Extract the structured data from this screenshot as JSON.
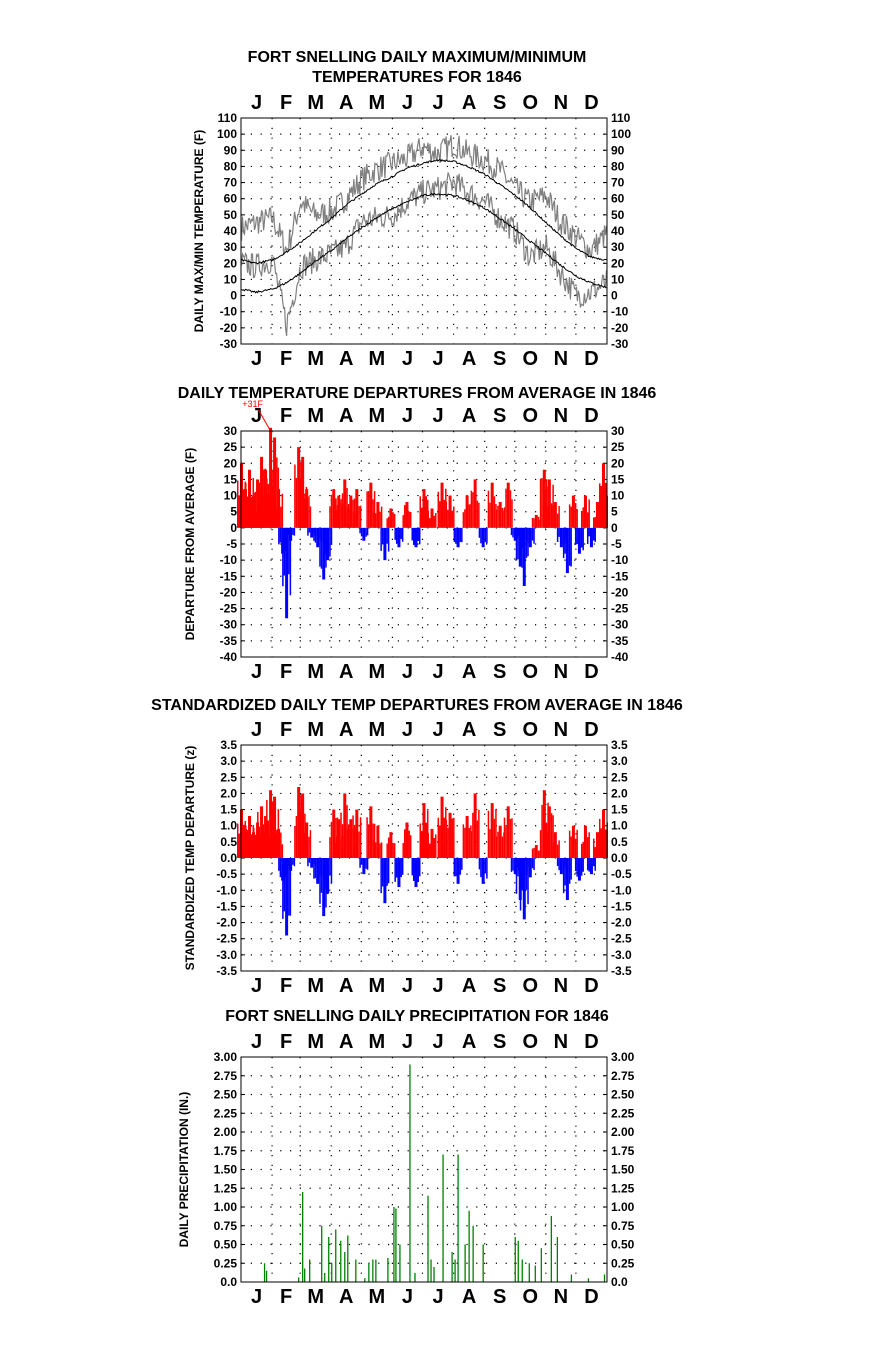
{
  "figure": {
    "months": [
      "J",
      "F",
      "M",
      "A",
      "M",
      "J",
      "J",
      "A",
      "S",
      "O",
      "N",
      "D"
    ]
  },
  "chart_data": [
    {
      "id": "maxmin",
      "type": "line",
      "title": [
        "FORT SNELLING DAILY MAXIMUM/MINIMUM",
        "TEMPERATURES FOR 1846"
      ],
      "ylabel": "DAILY MAX/MIN TEMPERATURE (F)",
      "ylim": [
        -30,
        110
      ],
      "yticks": [
        "110",
        "100",
        "90",
        "80",
        "70",
        "60",
        "50",
        "40",
        "30",
        "20",
        "10",
        "0",
        "-10",
        "-20",
        "-30"
      ],
      "grid": "dotted",
      "colors": {
        "observed": "#808080",
        "normal": "#000000"
      },
      "normal_max": [
        {
          "x": "Jan 1",
          "y": 22
        },
        {
          "x": "Jan 15",
          "y": 20
        },
        {
          "x": "Feb 1",
          "y": 22
        },
        {
          "x": "Feb 15",
          "y": 27
        },
        {
          "x": "Mar 1",
          "y": 33
        },
        {
          "x": "Mar 15",
          "y": 40
        },
        {
          "x": "Apr 1",
          "y": 48
        },
        {
          "x": "Apr 15",
          "y": 56
        },
        {
          "x": "May 1",
          "y": 63
        },
        {
          "x": "May 15",
          "y": 69
        },
        {
          "x": "Jun 1",
          "y": 74
        },
        {
          "x": "Jun 15",
          "y": 79
        },
        {
          "x": "Jul 1",
          "y": 82
        },
        {
          "x": "Jul 15",
          "y": 84
        },
        {
          "x": "Aug 1",
          "y": 83
        },
        {
          "x": "Aug 15",
          "y": 80
        },
        {
          "x": "Sep 1",
          "y": 75
        },
        {
          "x": "Sep 15",
          "y": 69
        },
        {
          "x": "Oct 1",
          "y": 62
        },
        {
          "x": "Oct 15",
          "y": 55
        },
        {
          "x": "Nov 1",
          "y": 45
        },
        {
          "x": "Nov 15",
          "y": 37
        },
        {
          "x": "Dec 1",
          "y": 29
        },
        {
          "x": "Dec 15",
          "y": 24
        },
        {
          "x": "Dec 31",
          "y": 22
        }
      ],
      "normal_min": [
        {
          "x": "Jan 1",
          "y": 4
        },
        {
          "x": "Jan 15",
          "y": 2
        },
        {
          "x": "Feb 1",
          "y": 4
        },
        {
          "x": "Feb 15",
          "y": 8
        },
        {
          "x": "Mar 1",
          "y": 14
        },
        {
          "x": "Mar 15",
          "y": 21
        },
        {
          "x": "Apr 1",
          "y": 28
        },
        {
          "x": "Apr 15",
          "y": 35
        },
        {
          "x": "May 1",
          "y": 42
        },
        {
          "x": "May 15",
          "y": 48
        },
        {
          "x": "Jun 1",
          "y": 54
        },
        {
          "x": "Jun 15",
          "y": 58
        },
        {
          "x": "Jul 1",
          "y": 62
        },
        {
          "x": "Jul 15",
          "y": 63
        },
        {
          "x": "Aug 1",
          "y": 62
        },
        {
          "x": "Aug 15",
          "y": 59
        },
        {
          "x": "Sep 1",
          "y": 54
        },
        {
          "x": "Sep 15",
          "y": 48
        },
        {
          "x": "Oct 1",
          "y": 41
        },
        {
          "x": "Oct 15",
          "y": 34
        },
        {
          "x": "Nov 1",
          "y": 26
        },
        {
          "x": "Nov 15",
          "y": 19
        },
        {
          "x": "Dec 1",
          "y": 12
        },
        {
          "x": "Dec 15",
          "y": 8
        },
        {
          "x": "Dec 31",
          "y": 5
        }
      ],
      "observed_max": [
        {
          "x": "Jan 1",
          "y": 42
        },
        {
          "x": "Jan 15",
          "y": 45
        },
        {
          "x": "Feb 1",
          "y": 48
        },
        {
          "x": "Feb 15",
          "y": 28
        },
        {
          "x": "Mar 1",
          "y": 58
        },
        {
          "x": "Mar 15",
          "y": 50
        },
        {
          "x": "Apr 1",
          "y": 52
        },
        {
          "x": "Apr 15",
          "y": 60
        },
        {
          "x": "May 1",
          "y": 72
        },
        {
          "x": "May 15",
          "y": 78
        },
        {
          "x": "Jun 1",
          "y": 82
        },
        {
          "x": "Jun 15",
          "y": 85
        },
        {
          "x": "Jul 1",
          "y": 92
        },
        {
          "x": "Jul 15",
          "y": 88
        },
        {
          "x": "Aug 1",
          "y": 94
        },
        {
          "x": "Aug 15",
          "y": 88
        },
        {
          "x": "Sep 1",
          "y": 84
        },
        {
          "x": "Sep 15",
          "y": 78
        },
        {
          "x": "Oct 1",
          "y": 66
        },
        {
          "x": "Oct 15",
          "y": 58
        },
        {
          "x": "Nov 1",
          "y": 62
        },
        {
          "x": "Nov 15",
          "y": 46
        },
        {
          "x": "Dec 1",
          "y": 36
        },
        {
          "x": "Dec 15",
          "y": 28
        },
        {
          "x": "Dec 31",
          "y": 38
        }
      ],
      "observed_min": [
        {
          "x": "Jan 1",
          "y": 20
        },
        {
          "x": "Jan 15",
          "y": 18
        },
        {
          "x": "Feb 1",
          "y": 22
        },
        {
          "x": "Feb 15",
          "y": -18
        },
        {
          "x": "Mar 1",
          "y": 18
        },
        {
          "x": "Mar 15",
          "y": 22
        },
        {
          "x": "Apr 1",
          "y": 26
        },
        {
          "x": "Apr 15",
          "y": 30
        },
        {
          "x": "May 1",
          "y": 46
        },
        {
          "x": "May 15",
          "y": 48
        },
        {
          "x": "Jun 1",
          "y": 50
        },
        {
          "x": "Jun 15",
          "y": 58
        },
        {
          "x": "Jul 1",
          "y": 64
        },
        {
          "x": "Jul 15",
          "y": 66
        },
        {
          "x": "Aug 1",
          "y": 70
        },
        {
          "x": "Aug 15",
          "y": 64
        },
        {
          "x": "Sep 1",
          "y": 58
        },
        {
          "x": "Sep 15",
          "y": 48
        },
        {
          "x": "Oct 1",
          "y": 40
        },
        {
          "x": "Oct 15",
          "y": 24
        },
        {
          "x": "Nov 1",
          "y": 30
        },
        {
          "x": "Nov 15",
          "y": 14
        },
        {
          "x": "Dec 1",
          "y": 0
        },
        {
          "x": "Dec 15",
          "y": 2
        },
        {
          "x": "Dec 31",
          "y": 8
        }
      ]
    },
    {
      "id": "departure",
      "type": "bar",
      "title": "DAILY TEMPERATURE DEPARTURES FROM AVERAGE IN 1846",
      "ylabel": "DEPARTURE FROM AVERAGE (F)",
      "ylim": [
        -40,
        30
      ],
      "yticks": [
        "30",
        "25",
        "20",
        "15",
        "10",
        "5",
        "0",
        "-5",
        "-10",
        "-15",
        "-20",
        "-25",
        "-30",
        "-35",
        "-40"
      ],
      "annotation": {
        "text": "+31F",
        "x": "Jan 30",
        "y": 31
      },
      "colors": {
        "positive": "#ff0000",
        "negative": "#0000ff"
      },
      "bars": [
        {
          "x": "Jan 1",
          "y": 20
        },
        {
          "x": "Jan 5",
          "y": 12
        },
        {
          "x": "Jan 9",
          "y": 18
        },
        {
          "x": "Jan 13",
          "y": 10
        },
        {
          "x": "Jan 17",
          "y": 15
        },
        {
          "x": "Jan 21",
          "y": 22
        },
        {
          "x": "Jan 25",
          "y": 18
        },
        {
          "x": "Jan 30",
          "y": 31
        },
        {
          "x": "Feb 3",
          "y": 28
        },
        {
          "x": "Feb 7",
          "y": 12
        },
        {
          "x": "Feb 11",
          "y": -8
        },
        {
          "x": "Feb 15",
          "y": -28
        },
        {
          "x": "Feb 19",
          "y": -4
        },
        {
          "x": "Feb 27",
          "y": 25
        },
        {
          "x": "Mar 3",
          "y": 22
        },
        {
          "x": "Mar 7",
          "y": 12
        },
        {
          "x": "Mar 12",
          "y": -3
        },
        {
          "x": "Mar 18",
          "y": -6
        },
        {
          "x": "Mar 24",
          "y": -16
        },
        {
          "x": "Mar 28",
          "y": -10
        },
        {
          "x": "Apr 3",
          "y": 12
        },
        {
          "x": "Apr 8",
          "y": 10
        },
        {
          "x": "Apr 14",
          "y": 15
        },
        {
          "x": "Apr 20",
          "y": 10
        },
        {
          "x": "Apr 26",
          "y": 12
        },
        {
          "x": "May 3",
          "y": -4
        },
        {
          "x": "May 10",
          "y": 14
        },
        {
          "x": "May 17",
          "y": 8
        },
        {
          "x": "May 24",
          "y": -10
        },
        {
          "x": "May 30",
          "y": 6
        },
        {
          "x": "Jun 7",
          "y": -6
        },
        {
          "x": "Jun 15",
          "y": 8
        },
        {
          "x": "Jun 24",
          "y": -6
        },
        {
          "x": "Jul 2",
          "y": 12
        },
        {
          "x": "Jul 10",
          "y": 6
        },
        {
          "x": "Jul 20",
          "y": 14
        },
        {
          "x": "Jul 28",
          "y": 10
        },
        {
          "x": "Aug 5",
          "y": -6
        },
        {
          "x": "Aug 14",
          "y": 10
        },
        {
          "x": "Aug 22",
          "y": 15
        },
        {
          "x": "Aug 30",
          "y": -6
        },
        {
          "x": "Sep 8",
          "y": 14
        },
        {
          "x": "Sep 16",
          "y": 8
        },
        {
          "x": "Sep 24",
          "y": 14
        },
        {
          "x": "Oct 1",
          "y": -4
        },
        {
          "x": "Oct 6",
          "y": -12
        },
        {
          "x": "Oct 10",
          "y": -18
        },
        {
          "x": "Oct 16",
          "y": -6
        },
        {
          "x": "Oct 22",
          "y": 4
        },
        {
          "x": "Oct 30",
          "y": 18
        },
        {
          "x": "Nov 4",
          "y": 15
        },
        {
          "x": "Nov 10",
          "y": 8
        },
        {
          "x": "Nov 16",
          "y": -6
        },
        {
          "x": "Nov 22",
          "y": -14
        },
        {
          "x": "Nov 28",
          "y": 10
        },
        {
          "x": "Dec 4",
          "y": -8
        },
        {
          "x": "Dec 10",
          "y": 10
        },
        {
          "x": "Dec 16",
          "y": -6
        },
        {
          "x": "Dec 22",
          "y": 8
        },
        {
          "x": "Dec 28",
          "y": 20
        }
      ]
    },
    {
      "id": "standardized",
      "type": "bar",
      "title": "STANDARDIZED DAILY TEMP DEPARTURES FROM AVERAGE IN 1846",
      "ylabel": "STANDARDIZED TEMP DEPARTURE (z)",
      "ylim": [
        -3.5,
        3.5
      ],
      "yticks": [
        "3.5",
        "3.0",
        "2.5",
        "2.0",
        "1.5",
        "1.0",
        "0.5",
        "0.0",
        "-0.5",
        "-1.0",
        "-1.5",
        "-2.0",
        "-2.5",
        "-3.0",
        "-3.5"
      ],
      "colors": {
        "positive": "#ff0000",
        "negative": "#0000ff"
      },
      "bars": [
        {
          "x": "Jan 1",
          "y": 1.5
        },
        {
          "x": "Jan 5",
          "y": 0.9
        },
        {
          "x": "Jan 9",
          "y": 1.3
        },
        {
          "x": "Jan 13",
          "y": 0.8
        },
        {
          "x": "Jan 17",
          "y": 1.1
        },
        {
          "x": "Jan 21",
          "y": 1.6
        },
        {
          "x": "Jan 25",
          "y": 1.3
        },
        {
          "x": "Jan 30",
          "y": 2.1
        },
        {
          "x": "Feb 3",
          "y": 1.9
        },
        {
          "x": "Feb 7",
          "y": 0.9
        },
        {
          "x": "Feb 11",
          "y": -0.7
        },
        {
          "x": "Feb 15",
          "y": -2.4
        },
        {
          "x": "Feb 19",
          "y": -0.4
        },
        {
          "x": "Feb 27",
          "y": 2.2
        },
        {
          "x": "Mar 3",
          "y": 2.0
        },
        {
          "x": "Mar 7",
          "y": 1.1
        },
        {
          "x": "Mar 12",
          "y": -0.3
        },
        {
          "x": "Mar 18",
          "y": -0.8
        },
        {
          "x": "Mar 24",
          "y": -1.8
        },
        {
          "x": "Mar 28",
          "y": -1.1
        },
        {
          "x": "Apr 3",
          "y": 1.5
        },
        {
          "x": "Apr 8",
          "y": 1.2
        },
        {
          "x": "Apr 14",
          "y": 2.0
        },
        {
          "x": "Apr 20",
          "y": 1.2
        },
        {
          "x": "Apr 26",
          "y": 1.5
        },
        {
          "x": "May 3",
          "y": -0.5
        },
        {
          "x": "May 10",
          "y": 1.6
        },
        {
          "x": "May 17",
          "y": 1.0
        },
        {
          "x": "May 24",
          "y": -1.4
        },
        {
          "x": "May 30",
          "y": 0.8
        },
        {
          "x": "Jun 7",
          "y": -0.9
        },
        {
          "x": "Jun 15",
          "y": 1.1
        },
        {
          "x": "Jun 24",
          "y": -0.9
        },
        {
          "x": "Jul 2",
          "y": 1.7
        },
        {
          "x": "Jul 10",
          "y": 0.9
        },
        {
          "x": "Jul 20",
          "y": 1.9
        },
        {
          "x": "Jul 28",
          "y": 1.4
        },
        {
          "x": "Aug 5",
          "y": -0.8
        },
        {
          "x": "Aug 14",
          "y": 1.3
        },
        {
          "x": "Aug 22",
          "y": 2.0
        },
        {
          "x": "Aug 30",
          "y": -0.8
        },
        {
          "x": "Sep 8",
          "y": 1.7
        },
        {
          "x": "Sep 16",
          "y": 1.0
        },
        {
          "x": "Sep 24",
          "y": 1.6
        },
        {
          "x": "Oct 1",
          "y": -0.5
        },
        {
          "x": "Oct 6",
          "y": -1.3
        },
        {
          "x": "Oct 10",
          "y": -1.9
        },
        {
          "x": "Oct 16",
          "y": -0.6
        },
        {
          "x": "Oct 22",
          "y": 0.4
        },
        {
          "x": "Oct 30",
          "y": 2.1
        },
        {
          "x": "Nov 4",
          "y": 1.6
        },
        {
          "x": "Nov 10",
          "y": 0.8
        },
        {
          "x": "Nov 16",
          "y": -0.5
        },
        {
          "x": "Nov 22",
          "y": -1.3
        },
        {
          "x": "Nov 28",
          "y": 1.0
        },
        {
          "x": "Dec 4",
          "y": -0.7
        },
        {
          "x": "Dec 10",
          "y": 1.0
        },
        {
          "x": "Dec 16",
          "y": -0.5
        },
        {
          "x": "Dec 22",
          "y": 0.8
        },
        {
          "x": "Dec 28",
          "y": 1.5
        }
      ]
    },
    {
      "id": "precip",
      "type": "bar",
      "title": "FORT SNELLING DAILY PRECIPITATION FOR 1846",
      "ylabel": "DAILY PRECIPITATION (IN.)",
      "ylim": [
        0,
        3
      ],
      "yticks": [
        "3.00",
        "2.75",
        "2.50",
        "2.25",
        "2.00",
        "1.75",
        "1.50",
        "1.25",
        "1.00",
        "0.75",
        "0.50",
        "0.25",
        "0.0"
      ],
      "colors": {
        "bars": "#008000"
      },
      "bars": [
        {
          "x": "Jan 24",
          "y": 0.25
        },
        {
          "x": "Jan 26",
          "y": 0.15
        },
        {
          "x": "Feb 27",
          "y": 0.06
        },
        {
          "x": "Mar 3",
          "y": 1.2
        },
        {
          "x": "Mar 5",
          "y": 0.18
        },
        {
          "x": "Mar 10",
          "y": 0.3
        },
        {
          "x": "Mar 22",
          "y": 0.75
        },
        {
          "x": "Mar 25",
          "y": 0.12
        },
        {
          "x": "Mar 29",
          "y": 0.6
        },
        {
          "x": "Apr 1",
          "y": 0.25
        },
        {
          "x": "Apr 5",
          "y": 0.7
        },
        {
          "x": "Apr 10",
          "y": 0.55
        },
        {
          "x": "Apr 14",
          "y": 0.4
        },
        {
          "x": "Apr 17",
          "y": 0.62
        },
        {
          "x": "Apr 25",
          "y": 0.3
        },
        {
          "x": "May 4",
          "y": 0.05
        },
        {
          "x": "May 8",
          "y": 0.25
        },
        {
          "x": "May 12",
          "y": 0.3
        },
        {
          "x": "May 15",
          "y": 0.3
        },
        {
          "x": "May 27",
          "y": 0.32
        },
        {
          "x": "Jun 2",
          "y": 1.0
        },
        {
          "x": "Jun 4",
          "y": 0.98
        },
        {
          "x": "Jun 8",
          "y": 0.5
        },
        {
          "x": "Jun 18",
          "y": 2.9
        },
        {
          "x": "Jun 23",
          "y": 0.12
        },
        {
          "x": "Jul 6",
          "y": 1.15
        },
        {
          "x": "Jul 9",
          "y": 0.3
        },
        {
          "x": "Jul 12",
          "y": 0.2
        },
        {
          "x": "Jul 21",
          "y": 1.7
        },
        {
          "x": "Jul 30",
          "y": 0.4
        },
        {
          "x": "Aug 2",
          "y": 0.3
        },
        {
          "x": "Aug 5",
          "y": 1.7
        },
        {
          "x": "Aug 12",
          "y": 0.5
        },
        {
          "x": "Aug 16",
          "y": 0.95
        },
        {
          "x": "Aug 20",
          "y": 0.75
        },
        {
          "x": "Aug 30",
          "y": 0.5
        },
        {
          "x": "Oct 1",
          "y": 0.6
        },
        {
          "x": "Oct 4",
          "y": 0.55
        },
        {
          "x": "Oct 8",
          "y": 0.3
        },
        {
          "x": "Oct 15",
          "y": 0.25
        },
        {
          "x": "Oct 21",
          "y": 0.22
        },
        {
          "x": "Oct 27",
          "y": 0.45
        },
        {
          "x": "Nov 6",
          "y": 0.88
        },
        {
          "x": "Nov 12",
          "y": 0.6
        },
        {
          "x": "Nov 26",
          "y": 0.1
        },
        {
          "x": "Dec 13",
          "y": 0.05
        },
        {
          "x": "Dec 29",
          "y": 0.1
        }
      ]
    }
  ]
}
